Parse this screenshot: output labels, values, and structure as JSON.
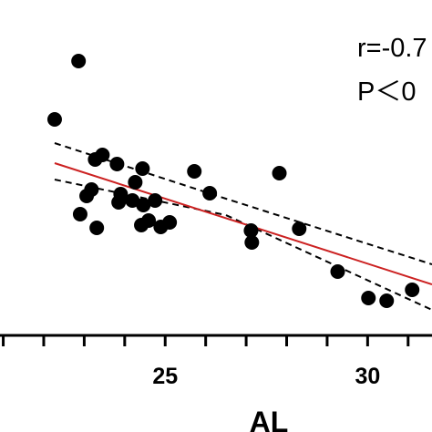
{
  "chart_data": {
    "type": "scatter",
    "x_label": "AL",
    "annotations": [
      "r=-0.7",
      "P＜0"
    ],
    "xlim": [
      20.92,
      31.59
    ],
    "ylim": [
      0,
      368
    ],
    "xticks": [
      25,
      30
    ],
    "xminorticks": [
      21,
      22,
      23,
      24,
      25,
      26,
      27,
      28,
      29,
      30,
      31
    ],
    "color": "#000000",
    "x": [
      22.27,
      22.86,
      23.27,
      23.45,
      23.81,
      24.44,
      25.72,
      27.82,
      23.18,
      23.06,
      23.9,
      24.26,
      23.85,
      24.19,
      24.46,
      24.75,
      22.9,
      23.31,
      24.41,
      24.59,
      24.89,
      25.11,
      26.1,
      27.12,
      27.14,
      28.31,
      29.26,
      30.02,
      30.47,
      31.1
    ],
    "values": [
      237,
      301,
      193,
      198,
      188,
      183,
      180,
      178,
      160,
      153,
      155,
      168,
      146,
      148,
      143,
      148,
      133,
      118,
      121,
      126,
      119,
      124,
      156,
      115,
      102,
      117,
      70,
      41,
      38,
      50
    ],
    "fit": {
      "color": "#cc2222",
      "x": [
        22.27,
        31.59
      ],
      "values": [
        189,
        56
      ]
    },
    "bands": {
      "color": "#000000",
      "x": [
        22.27,
        26.5,
        31.59
      ],
      "upper": [
        211,
        150,
        78
      ],
      "lower": [
        171,
        132,
        28
      ]
    }
  }
}
